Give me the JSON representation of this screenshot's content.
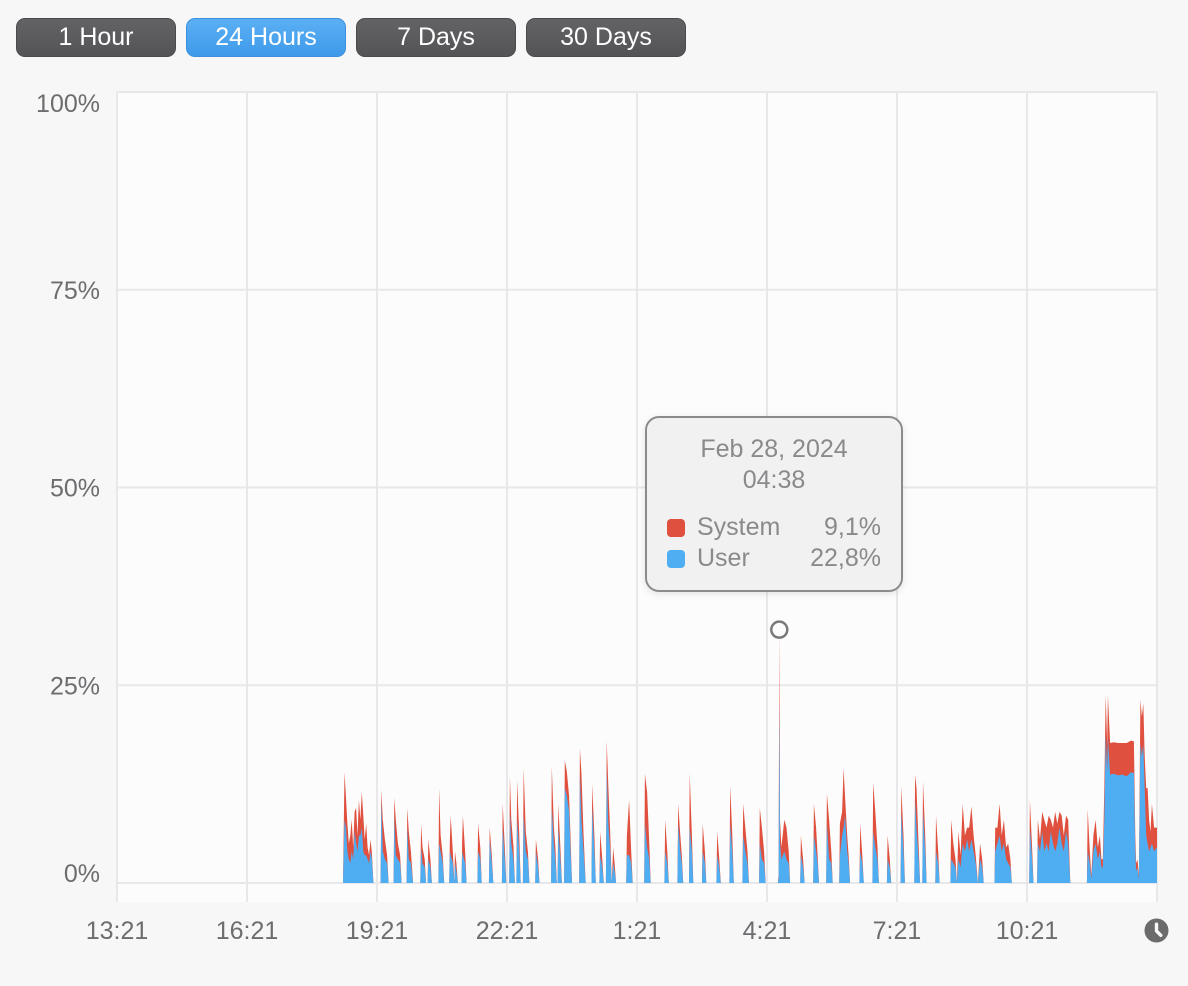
{
  "toolbar": {
    "buttons": [
      {
        "label": "1 Hour",
        "selected": false
      },
      {
        "label": "24 Hours",
        "selected": true
      },
      {
        "label": "7 Days",
        "selected": false
      },
      {
        "label": "30 Days",
        "selected": false
      }
    ]
  },
  "colors": {
    "page_bg": "#f7f7f8",
    "plot_bg": "#fcfcfc",
    "grid": "#e8e8ea",
    "axis_text": "#6d6d70",
    "system_red": "#e0503e",
    "user_blue": "#4faef2",
    "selected_button_blue": "#4aa4ee",
    "button_dark": "#59595c",
    "tooltip_border": "#8b8b8d",
    "tooltip_text": "#8a8a8c",
    "marker_stroke": "#7a7a7c",
    "clock_fill": "#6b6b6b"
  },
  "tooltip": {
    "date": "Feb 28, 2024",
    "time": "04:38",
    "rows": [
      {
        "series": "system",
        "label": "System",
        "value": "9,1%"
      },
      {
        "series": "user",
        "label": "User",
        "value": "22,8%"
      }
    ]
  },
  "icons": {
    "bottom_right": "clock-icon"
  },
  "chart_data": {
    "type": "area",
    "stacked": true,
    "unit": "%",
    "ylim": [
      0,
      100
    ],
    "grid": true,
    "y_ticks": [
      {
        "v": 0,
        "label": "0%"
      },
      {
        "v": 25,
        "label": "25%"
      },
      {
        "v": 50,
        "label": "50%"
      },
      {
        "v": 75,
        "label": "75%"
      },
      {
        "v": 100,
        "label": "100%"
      }
    ],
    "x_ticks": [
      {
        "t": 0,
        "label": "13:21"
      },
      {
        "t": 180,
        "label": "16:21"
      },
      {
        "t": 360,
        "label": "19:21"
      },
      {
        "t": 540,
        "label": "22:21"
      },
      {
        "t": 720,
        "label": "1:21"
      },
      {
        "t": 900,
        "label": "4:21"
      },
      {
        "t": 1080,
        "label": "7:21"
      },
      {
        "t": 1260,
        "label": "10:21"
      },
      {
        "t": 1440,
        "label": ""
      }
    ],
    "x_range_minutes": 1440,
    "series": [
      {
        "name": "System",
        "key": "system",
        "color": "#e0503e"
      },
      {
        "name": "User",
        "key": "user",
        "color": "#4faef2"
      }
    ],
    "points_format": [
      "minutes_after_13:21",
      "user_pct",
      "system_pct"
    ],
    "points": [
      [
        313,
        0.5,
        0.5
      ],
      [
        315,
        8,
        6
      ],
      [
        317,
        7,
        4
      ],
      [
        319,
        4,
        3.5
      ],
      [
        321,
        3,
        2
      ],
      [
        323,
        2.5,
        3.5
      ],
      [
        325,
        4,
        4
      ],
      [
        327,
        3,
        1.5
      ],
      [
        329,
        6.5,
        2.5
      ],
      [
        331,
        5,
        4.5
      ],
      [
        333,
        4,
        2
      ],
      [
        335,
        6,
        4.5
      ],
      [
        337,
        6,
        2
      ],
      [
        339,
        7,
        4.5
      ],
      [
        341,
        4,
        4.5
      ],
      [
        343,
        3.5,
        2
      ],
      [
        345,
        3.5,
        4
      ],
      [
        347,
        3,
        1.5
      ],
      [
        349,
        2.5,
        1
      ],
      [
        351,
        4,
        1.5
      ],
      [
        353,
        3,
        0.8
      ],
      [
        355,
        0,
        0
      ],
      [
        365,
        0,
        0
      ],
      [
        366,
        10.5,
        1.3
      ],
      [
        368,
        4,
        4
      ],
      [
        371,
        3,
        2.5
      ],
      [
        374,
        2.5,
        1
      ],
      [
        376,
        0,
        0
      ],
      [
        383,
        0,
        0
      ],
      [
        384,
        8.5,
        2.3
      ],
      [
        386,
        3.5,
        4.5
      ],
      [
        389,
        3,
        2
      ],
      [
        392,
        2.5,
        1
      ],
      [
        394,
        0,
        0
      ],
      [
        401,
        0,
        0
      ],
      [
        402,
        7,
        2.5
      ],
      [
        404,
        3,
        3.5
      ],
      [
        407,
        2.5,
        1.5
      ],
      [
        410,
        0,
        0
      ],
      [
        420,
        0,
        0
      ],
      [
        421,
        4.5,
        3
      ],
      [
        423,
        2.5,
        2
      ],
      [
        426,
        2,
        1
      ],
      [
        428,
        0,
        0
      ],
      [
        430,
        0,
        0
      ],
      [
        431,
        3,
        2.5
      ],
      [
        434,
        2,
        1
      ],
      [
        436,
        0,
        0
      ],
      [
        445,
        0,
        0
      ],
      [
        446,
        5,
        7
      ],
      [
        448,
        4,
        2
      ],
      [
        451,
        2.5,
        1
      ],
      [
        453,
        0,
        0
      ],
      [
        460,
        0,
        0
      ],
      [
        461,
        4,
        1.5
      ],
      [
        462,
        3.5,
        5
      ],
      [
        465,
        2.5,
        1.5
      ],
      [
        467,
        0,
        0
      ],
      [
        468,
        2.5,
        1.5
      ],
      [
        470,
        1.5,
        1
      ],
      [
        472,
        0,
        0
      ],
      [
        477,
        0,
        0
      ],
      [
        478,
        4,
        1.5
      ],
      [
        479,
        3.5,
        5
      ],
      [
        482,
        2.5,
        1.5
      ],
      [
        484,
        0,
        0
      ],
      [
        499,
        0,
        0
      ],
      [
        500,
        4,
        3.5
      ],
      [
        503,
        3,
        1.5
      ],
      [
        505,
        0,
        0
      ],
      [
        515,
        0,
        0
      ],
      [
        516,
        5.5,
        1.5
      ],
      [
        519,
        2.5,
        1
      ],
      [
        521,
        0,
        0
      ],
      [
        533,
        0,
        0
      ],
      [
        534,
        7,
        3
      ],
      [
        537,
        3,
        1.5
      ],
      [
        539,
        0,
        0
      ],
      [
        543,
        0,
        0
      ],
      [
        544,
        9,
        4.5
      ],
      [
        546,
        5,
        3
      ],
      [
        549,
        3,
        1.5
      ],
      [
        551,
        0,
        0
      ],
      [
        553,
        0,
        0
      ],
      [
        554,
        8,
        5
      ],
      [
        557,
        4,
        2
      ],
      [
        559,
        0,
        0
      ],
      [
        562,
        0,
        0
      ],
      [
        563,
        8.5,
        6
      ],
      [
        566,
        4,
        2.5
      ],
      [
        569,
        3,
        1
      ],
      [
        571,
        0,
        0
      ],
      [
        579,
        0,
        0
      ],
      [
        580,
        4,
        1.5
      ],
      [
        583,
        2,
        1
      ],
      [
        585,
        0,
        0
      ],
      [
        601,
        0,
        0
      ],
      [
        602,
        9.5,
        5.3
      ],
      [
        605,
        5,
        2
      ],
      [
        607,
        3,
        1.5
      ],
      [
        609,
        0,
        0
      ],
      [
        610,
        0,
        0
      ],
      [
        611,
        7,
        3
      ],
      [
        614,
        3,
        1.5
      ],
      [
        616,
        0,
        0
      ],
      [
        619,
        0,
        0
      ],
      [
        620,
        12,
        3.5
      ],
      [
        623,
        11,
        3
      ],
      [
        626,
        9,
        2
      ],
      [
        628,
        4,
        1.5
      ],
      [
        630,
        0,
        0
      ],
      [
        640,
        0,
        0
      ],
      [
        641,
        14,
        3
      ],
      [
        643,
        8,
        6
      ],
      [
        646,
        4,
        2
      ],
      [
        649,
        0,
        0
      ],
      [
        657,
        0,
        0
      ],
      [
        658,
        9.5,
        3
      ],
      [
        661,
        4,
        2
      ],
      [
        663,
        0,
        0
      ],
      [
        668,
        0,
        0
      ],
      [
        669,
        3.5,
        3
      ],
      [
        672,
        2,
        1
      ],
      [
        674,
        0,
        0
      ],
      [
        677,
        0,
        0
      ],
      [
        678,
        14.5,
        3.5
      ],
      [
        680,
        8,
        5
      ],
      [
        683,
        4,
        2
      ],
      [
        685,
        0,
        0
      ],
      [
        687,
        2.5,
        2
      ],
      [
        689,
        1.5,
        1
      ],
      [
        691,
        0,
        0
      ],
      [
        705,
        0,
        0
      ],
      [
        706,
        3.5,
        2.5
      ],
      [
        709,
        3.5,
        7
      ],
      [
        712,
        2.5,
        1.5
      ],
      [
        714,
        0,
        0
      ],
      [
        730,
        0,
        0
      ],
      [
        731,
        7.5,
        6.3
      ],
      [
        734,
        4.5,
        7
      ],
      [
        737,
        3,
        2
      ],
      [
        739,
        0,
        0
      ],
      [
        758,
        0,
        0
      ],
      [
        759,
        4,
        4
      ],
      [
        762,
        2.5,
        1.5
      ],
      [
        764,
        0,
        0
      ],
      [
        776,
        0,
        0
      ],
      [
        777,
        7.5,
        2.5
      ],
      [
        780,
        4,
        2
      ],
      [
        782,
        2.5,
        1
      ],
      [
        784,
        0,
        0
      ],
      [
        792,
        0,
        0
      ],
      [
        793,
        7,
        6.9
      ],
      [
        796,
        4,
        2
      ],
      [
        798,
        0,
        0
      ],
      [
        810,
        0,
        0
      ],
      [
        811,
        4,
        3.5
      ],
      [
        814,
        2.5,
        1.5
      ],
      [
        816,
        0,
        0
      ],
      [
        830,
        0,
        0
      ],
      [
        831,
        3.5,
        3
      ],
      [
        834,
        2,
        1
      ],
      [
        836,
        0,
        0
      ],
      [
        848,
        0,
        0
      ],
      [
        849,
        7.5,
        4.8
      ],
      [
        852,
        4,
        2
      ],
      [
        854,
        0,
        0
      ],
      [
        866,
        0,
        0
      ],
      [
        867,
        6,
        4
      ],
      [
        870,
        4,
        3
      ],
      [
        873,
        2.5,
        1.5
      ],
      [
        875,
        0,
        0
      ],
      [
        889,
        0,
        0
      ],
      [
        890,
        5,
        4.5
      ],
      [
        893,
        3,
        4
      ],
      [
        896,
        2.5,
        1.5
      ],
      [
        898,
        0,
        0
      ],
      [
        915,
        0,
        0
      ],
      [
        916,
        0.5,
        0.5
      ],
      [
        917,
        22.8,
        9.1
      ],
      [
        918,
        5,
        3
      ],
      [
        920,
        3,
        1.5
      ],
      [
        924,
        4,
        4
      ],
      [
        927,
        3,
        4
      ],
      [
        930,
        2.5,
        1.5
      ],
      [
        932,
        0,
        0
      ],
      [
        946,
        0,
        0
      ],
      [
        947,
        3.5,
        2.5
      ],
      [
        950,
        2,
        1
      ],
      [
        952,
        0,
        0
      ],
      [
        964,
        0,
        0
      ],
      [
        965,
        6,
        4
      ],
      [
        968,
        4,
        3
      ],
      [
        970,
        2.5,
        1
      ],
      [
        972,
        0,
        0
      ],
      [
        982,
        0,
        0
      ],
      [
        983,
        7.5,
        3.8
      ],
      [
        986,
        3,
        5
      ],
      [
        989,
        2.5,
        1.5
      ],
      [
        991,
        0,
        0
      ],
      [
        1000,
        0,
        0
      ],
      [
        1001,
        3.5,
        4
      ],
      [
        1004,
        6,
        3
      ],
      [
        1006,
        7,
        7.5
      ],
      [
        1008,
        8.5,
        2.5
      ],
      [
        1011,
        4,
        2
      ],
      [
        1013,
        2.5,
        1
      ],
      [
        1015,
        0,
        0
      ],
      [
        1028,
        0,
        0
      ],
      [
        1029,
        4,
        3.5
      ],
      [
        1032,
        2.5,
        1
      ],
      [
        1034,
        0,
        0
      ],
      [
        1046,
        0,
        0
      ],
      [
        1047,
        6.5,
        6.2
      ],
      [
        1050,
        4.5,
        4.5
      ],
      [
        1053,
        3,
        1.5
      ],
      [
        1055,
        0,
        0
      ],
      [
        1066,
        0,
        0
      ],
      [
        1067,
        3,
        3
      ],
      [
        1070,
        2,
        1
      ],
      [
        1072,
        0,
        0
      ],
      [
        1085,
        0,
        0
      ],
      [
        1086,
        9,
        3.2
      ],
      [
        1089,
        4,
        2
      ],
      [
        1091,
        0,
        0
      ],
      [
        1104,
        0,
        0
      ],
      [
        1105,
        10.5,
        3.2
      ],
      [
        1107,
        7,
        5
      ],
      [
        1110,
        3,
        1.5
      ],
      [
        1112,
        0,
        0
      ],
      [
        1115,
        0,
        0
      ],
      [
        1116,
        9,
        3.9
      ],
      [
        1119,
        4,
        2
      ],
      [
        1121,
        0,
        0
      ],
      [
        1133,
        0,
        0
      ],
      [
        1134,
        4,
        4.5
      ],
      [
        1137,
        2.5,
        1.5
      ],
      [
        1139,
        0,
        0
      ],
      [
        1154,
        0,
        0
      ],
      [
        1155,
        3,
        5
      ],
      [
        1158,
        2.5,
        2.5
      ],
      [
        1161,
        2,
        1
      ],
      [
        1163,
        0,
        0
      ],
      [
        1165,
        3,
        3.5
      ],
      [
        1168,
        2,
        1.5
      ],
      [
        1171,
        5,
        5
      ],
      [
        1174,
        4,
        2
      ],
      [
        1177,
        5.5,
        1.5
      ],
      [
        1180,
        4,
        3
      ],
      [
        1183,
        5.5,
        4.2
      ],
      [
        1186,
        4,
        2
      ],
      [
        1189,
        2.5,
        1
      ],
      [
        1192,
        0,
        0
      ],
      [
        1195,
        3,
        2
      ],
      [
        1198,
        2,
        1
      ],
      [
        1200,
        0,
        0
      ],
      [
        1215,
        0,
        0
      ],
      [
        1216,
        4,
        3
      ],
      [
        1219,
        5,
        2
      ],
      [
        1222,
        6,
        4
      ],
      [
        1225,
        4,
        2
      ],
      [
        1228,
        5,
        3
      ],
      [
        1231,
        3,
        1.5
      ],
      [
        1234,
        2.5,
        2.5
      ],
      [
        1237,
        2,
        1
      ],
      [
        1239,
        0,
        0
      ],
      [
        1263,
        0,
        0
      ],
      [
        1264,
        7,
        3.5
      ],
      [
        1267,
        3,
        1.5
      ],
      [
        1269,
        0,
        0
      ],
      [
        1274,
        0,
        0
      ],
      [
        1275,
        5,
        3
      ],
      [
        1278,
        4,
        1.5
      ],
      [
        1281,
        6.5,
        2.5
      ],
      [
        1284,
        4,
        4
      ],
      [
        1287,
        5,
        2
      ],
      [
        1290,
        4,
        4.5
      ],
      [
        1293,
        6.5,
        1.5
      ],
      [
        1296,
        5,
        2
      ],
      [
        1299,
        4,
        5
      ],
      [
        1302,
        5,
        2.5
      ],
      [
        1305,
        7,
        2
      ],
      [
        1308,
        5,
        3.5
      ],
      [
        1311,
        4,
        2
      ],
      [
        1314,
        6.5,
        2
      ],
      [
        1317,
        5,
        3
      ],
      [
        1320,
        0,
        0
      ],
      [
        1343,
        0,
        0
      ],
      [
        1344,
        4,
        5.3
      ],
      [
        1347,
        2.5,
        1.5
      ],
      [
        1349,
        0.5,
        0.5
      ],
      [
        1352,
        4,
        2
      ],
      [
        1355,
        5,
        3
      ],
      [
        1358,
        3,
        1.5
      ],
      [
        1361,
        4,
        2
      ],
      [
        1363,
        2,
        1
      ],
      [
        1365,
        2,
        1
      ],
      [
        1367,
        8,
        4
      ],
      [
        1369,
        18.8,
        5
      ],
      [
        1371,
        14,
        3.5
      ],
      [
        1372,
        18.5,
        5.3
      ],
      [
        1375,
        13.7,
        4
      ],
      [
        1380,
        13.8,
        4
      ],
      [
        1386,
        13.6,
        4.1
      ],
      [
        1392,
        13.7,
        4
      ],
      [
        1398,
        13.5,
        4.2
      ],
      [
        1404,
        14,
        4
      ],
      [
        1408,
        13.9,
        4
      ],
      [
        1410,
        4,
        2
      ],
      [
        1411,
        1.5,
        1
      ],
      [
        1413,
        2,
        1
      ],
      [
        1415,
        0.5,
        0.5
      ],
      [
        1417,
        17.7,
        5.5
      ],
      [
        1419,
        16,
        5
      ],
      [
        1421,
        17.5,
        5.2
      ],
      [
        1423,
        12,
        4
      ],
      [
        1425,
        6,
        6
      ],
      [
        1427,
        5,
        7
      ],
      [
        1429,
        4,
        4
      ],
      [
        1431,
        4.5,
        2
      ],
      [
        1433,
        5,
        5
      ],
      [
        1436,
        4,
        3
      ],
      [
        1440,
        4.5,
        2.5
      ]
    ],
    "highlight": {
      "t": 917,
      "user": 22.8,
      "system": 9.1,
      "date": "Feb 28, 2024",
      "time": "04:38"
    }
  }
}
